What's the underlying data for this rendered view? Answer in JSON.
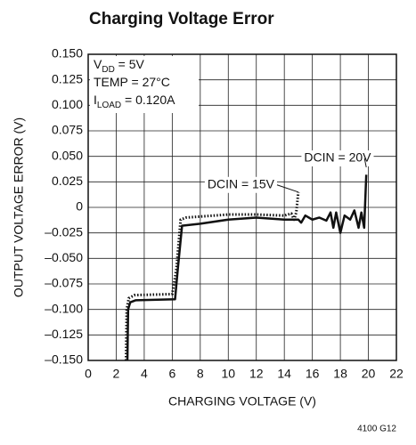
{
  "chart_data": {
    "type": "line",
    "title": "Charging Voltage Error",
    "x_label": "CHARGING VOLTAGE (V)",
    "y_label": "OUTPUT VOLTAGE ERROR (V)",
    "footnote": "4100 G12",
    "conditions": [
      [
        {
          "text": "V"
        },
        {
          "text": "DD",
          "sub": true
        },
        {
          "text": " = 5V"
        }
      ],
      [
        {
          "text": "TEMP = 27°C"
        }
      ],
      [
        {
          "text": "I"
        },
        {
          "text": "LOAD",
          "sub": true
        },
        {
          "text": " = 0.120A"
        }
      ]
    ],
    "xlim": [
      0,
      22
    ],
    "xticks": [
      0,
      2,
      4,
      6,
      8,
      10,
      12,
      14,
      16,
      18,
      20,
      22
    ],
    "ylim": [
      -0.15,
      0.15
    ],
    "yticks": [
      {
        "value": -0.15,
        "label": "–0.150"
      },
      {
        "value": -0.125,
        "label": "–0.125"
      },
      {
        "value": -0.1,
        "label": "–0.100"
      },
      {
        "value": -0.075,
        "label": "–0.075"
      },
      {
        "value": -0.05,
        "label": "–0.050"
      },
      {
        "value": -0.025,
        "label": "–0.025"
      },
      0,
      0.025,
      {
        "value": 0.05,
        "label": "0.050"
      },
      0.075,
      {
        "value": 0.1,
        "label": "0.100"
      },
      0.125,
      {
        "value": 0.15,
        "label": "0.150"
      }
    ],
    "grid": true,
    "series": [
      {
        "name": "DCIN = 20V",
        "color": "#111",
        "style": "solid",
        "x": [
          2.8,
          2.85,
          3.0,
          3.4,
          6.2,
          6.4,
          6.7,
          8,
          10,
          12,
          14,
          15,
          15.2,
          15.5,
          16,
          16.5,
          17,
          17.3,
          17.5,
          17.7,
          18,
          18.3,
          18.7,
          19,
          19.3,
          19.5,
          19.7,
          19.85
        ],
        "values": [
          -0.15,
          -0.1,
          -0.093,
          -0.091,
          -0.09,
          -0.06,
          -0.018,
          -0.016,
          -0.012,
          -0.01,
          -0.012,
          -0.012,
          -0.015,
          -0.008,
          -0.012,
          -0.01,
          -0.013,
          -0.005,
          -0.02,
          -0.005,
          -0.025,
          -0.008,
          -0.012,
          -0.003,
          -0.02,
          -0.005,
          -0.02,
          0.032
        ],
        "label_at": [
          17.8,
          0.048
        ]
      },
      {
        "name": "DCIN = 15V",
        "color": "#111",
        "style": "dotted",
        "x": [
          2.7,
          2.75,
          2.9,
          3.3,
          6.0,
          6.3,
          6.6,
          7,
          8,
          10,
          12,
          14,
          14.5,
          14.7,
          14.85,
          15.0
        ],
        "values": [
          -0.15,
          -0.1,
          -0.089,
          -0.086,
          -0.085,
          -0.06,
          -0.012,
          -0.01,
          -0.009,
          -0.007,
          -0.007,
          -0.008,
          -0.006,
          -0.012,
          -0.005,
          0.015
        ],
        "label_at": [
          10.9,
          0.022
        ]
      }
    ]
  }
}
